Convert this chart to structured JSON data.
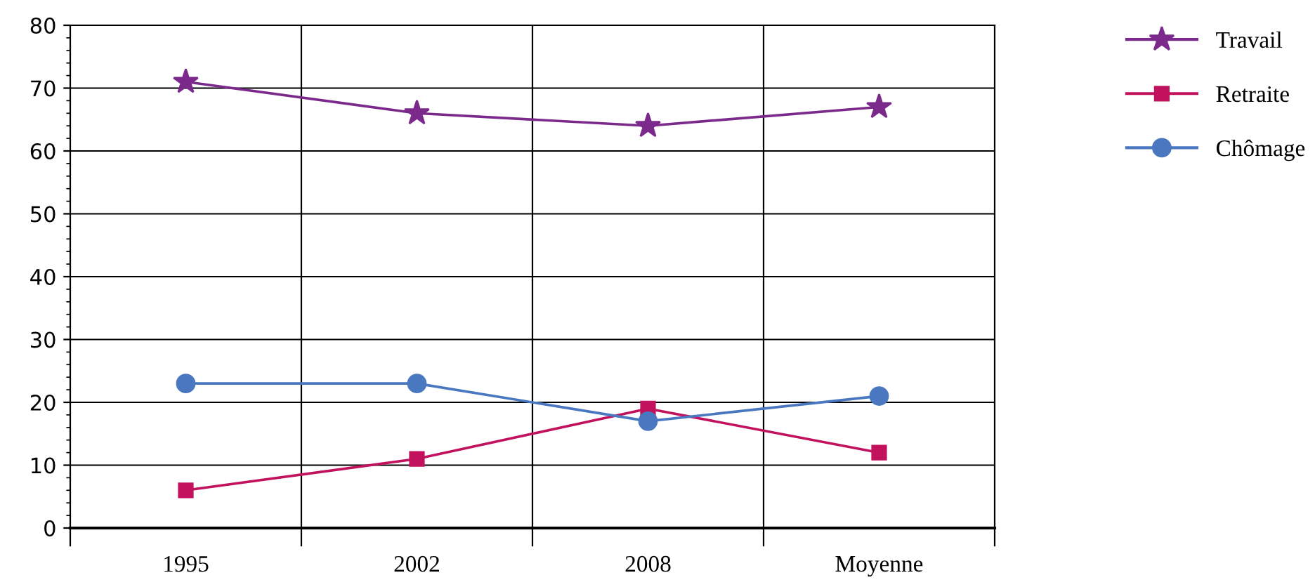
{
  "chart_data": {
    "type": "line",
    "categories": [
      "1995",
      "2002",
      "2008",
      "Moyenne"
    ],
    "series": [
      {
        "name": "Travail",
        "color": "#7b2a8c",
        "marker": "star",
        "values": [
          71,
          66,
          64,
          67
        ]
      },
      {
        "name": "Retraite",
        "color": "#c2125e",
        "marker": "square",
        "values": [
          6,
          11,
          19,
          12
        ]
      },
      {
        "name": "Chômage",
        "color": "#4a78c0",
        "marker": "circle",
        "values": [
          23,
          23,
          17,
          21
        ]
      }
    ],
    "ylim": [
      0,
      80
    ],
    "yticks": [
      0,
      10,
      20,
      30,
      40,
      50,
      60,
      70,
      80
    ],
    "grid": true,
    "legend": "top right",
    "line_style": "solid"
  }
}
